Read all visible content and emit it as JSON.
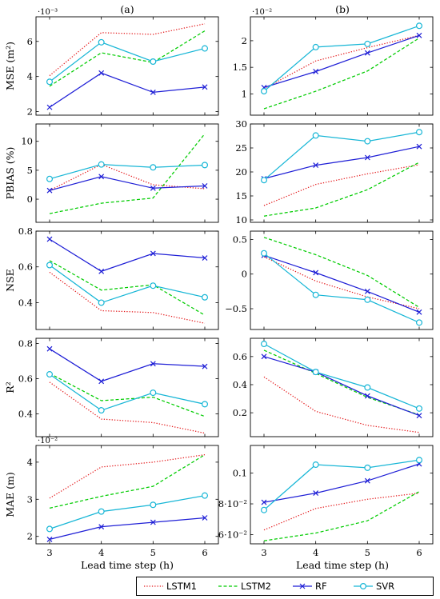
{
  "panel_labels": [
    "(a)",
    "(b)"
  ],
  "xlabel": "Lead time step (h)",
  "x_ticks": [
    3,
    4,
    5,
    6
  ],
  "legend": [
    {
      "name": "LSTM1",
      "color": "#e41a1c",
      "style": "dotted",
      "marker": "none"
    },
    {
      "name": "LSTM2",
      "color": "#00cc00",
      "style": "dashed",
      "marker": "none"
    },
    {
      "name": "RF",
      "color": "#1f1fd6",
      "style": "solid",
      "marker": "x"
    },
    {
      "name": "SVR",
      "color": "#17b6d6",
      "style": "solid",
      "marker": "o"
    }
  ],
  "chart_data": [
    {
      "type": "line",
      "panel": "a",
      "ylabel": "MSE (m²)",
      "exponent": "·10⁻³",
      "x": [
        3,
        4,
        5,
        6
      ],
      "ylim": [
        1.8,
        7.4
      ],
      "yticks": [
        2,
        4,
        6
      ],
      "ytick_labels": [
        "2",
        "4",
        "6"
      ],
      "series": [
        {
          "name": "LSTM1",
          "values": [
            4.05,
            6.5,
            6.4,
            7.0
          ]
        },
        {
          "name": "LSTM2",
          "values": [
            3.45,
            5.35,
            4.8,
            6.6
          ]
        },
        {
          "name": "RF",
          "values": [
            2.25,
            4.2,
            3.1,
            3.4
          ]
        },
        {
          "name": "SVR",
          "values": [
            3.7,
            5.95,
            4.85,
            5.6
          ]
        }
      ]
    },
    {
      "type": "line",
      "panel": "b",
      "ylabel": "",
      "exponent": "·10⁻²",
      "x": [
        3,
        4,
        5,
        6
      ],
      "ylim": [
        0.6,
        2.45
      ],
      "yticks": [
        1,
        1.5,
        2
      ],
      "ytick_labels": [
        "1",
        "1.5",
        "2"
      ],
      "series": [
        {
          "name": "LSTM1",
          "values": [
            1.1,
            1.62,
            1.87,
            2.1
          ]
        },
        {
          "name": "LSTM2",
          "values": [
            0.72,
            1.05,
            1.43,
            2.05
          ]
        },
        {
          "name": "RF",
          "values": [
            1.12,
            1.42,
            1.77,
            2.1
          ]
        },
        {
          "name": "SVR",
          "values": [
            1.05,
            1.88,
            1.94,
            2.28
          ]
        }
      ]
    },
    {
      "type": "line",
      "panel": "a",
      "ylabel": "PBIAS (%)",
      "exponent": "",
      "x": [
        3,
        4,
        5,
        6
      ],
      "ylim": [
        -4,
        13
      ],
      "yticks": [
        0,
        5,
        10
      ],
      "ytick_labels": [
        "0",
        "5",
        "10"
      ],
      "series": [
        {
          "name": "LSTM1",
          "values": [
            1.5,
            6.0,
            2.5,
            1.8
          ]
        },
        {
          "name": "LSTM2",
          "values": [
            -2.5,
            -0.7,
            0.2,
            11.3
          ]
        },
        {
          "name": "RF",
          "values": [
            1.5,
            3.9,
            1.9,
            2.3
          ]
        },
        {
          "name": "SVR",
          "values": [
            3.5,
            6.0,
            5.5,
            5.9
          ]
        }
      ]
    },
    {
      "type": "line",
      "panel": "b",
      "ylabel": "",
      "exponent": "",
      "x": [
        3,
        4,
        5,
        6
      ],
      "ylim": [
        9.5,
        30
      ],
      "yticks": [
        10,
        15,
        20,
        25,
        30
      ],
      "ytick_labels": [
        "10",
        "15",
        "20",
        "25",
        "30"
      ],
      "series": [
        {
          "name": "LSTM1",
          "values": [
            13.0,
            17.4,
            19.6,
            21.5
          ]
        },
        {
          "name": "LSTM2",
          "values": [
            10.8,
            12.5,
            16.3,
            22.0
          ]
        },
        {
          "name": "RF",
          "values": [
            18.6,
            21.4,
            23.0,
            25.3
          ]
        },
        {
          "name": "SVR",
          "values": [
            18.3,
            27.6,
            26.4,
            28.3
          ]
        }
      ]
    },
    {
      "type": "line",
      "panel": "a",
      "ylabel": "NSE",
      "exponent": "",
      "x": [
        3,
        4,
        5,
        6
      ],
      "ylim": [
        0.25,
        0.8
      ],
      "yticks": [
        0.4,
        0.6,
        0.8
      ],
      "ytick_labels": [
        "0.4",
        "0.6",
        "0.8"
      ],
      "series": [
        {
          "name": "LSTM1",
          "values": [
            0.57,
            0.355,
            0.345,
            0.285
          ]
        },
        {
          "name": "LSTM2",
          "values": [
            0.635,
            0.47,
            0.5,
            0.33
          ]
        },
        {
          "name": "RF",
          "values": [
            0.755,
            0.575,
            0.675,
            0.65
          ]
        },
        {
          "name": "SVR",
          "values": [
            0.61,
            0.4,
            0.495,
            0.43
          ]
        }
      ]
    },
    {
      "type": "line",
      "panel": "b",
      "ylabel": "",
      "exponent": "",
      "x": [
        3,
        4,
        5,
        6
      ],
      "ylim": [
        -0.8,
        0.62
      ],
      "yticks": [
        -0.5,
        0,
        0.5
      ],
      "ytick_labels": [
        "−0.5",
        "0",
        "0.5"
      ],
      "series": [
        {
          "name": "LSTM1",
          "values": [
            0.25,
            -0.1,
            -0.33,
            -0.5
          ]
        },
        {
          "name": "LSTM2",
          "values": [
            0.53,
            0.28,
            -0.02,
            -0.48
          ]
        },
        {
          "name": "RF",
          "values": [
            0.27,
            0.02,
            -0.25,
            -0.55
          ]
        },
        {
          "name": "SVR",
          "values": [
            0.3,
            -0.3,
            -0.37,
            -0.7
          ]
        }
      ]
    },
    {
      "type": "line",
      "panel": "a",
      "ylabel": "R²",
      "exponent": "",
      "x": [
        3,
        4,
        5,
        6
      ],
      "ylim": [
        0.27,
        0.83
      ],
      "yticks": [
        0.4,
        0.6,
        0.8
      ],
      "ytick_labels": [
        "0.4",
        "0.6",
        "0.8"
      ],
      "series": [
        {
          "name": "LSTM1",
          "values": [
            0.58,
            0.37,
            0.35,
            0.29
          ]
        },
        {
          "name": "LSTM2",
          "values": [
            0.63,
            0.475,
            0.495,
            0.385
          ]
        },
        {
          "name": "RF",
          "values": [
            0.77,
            0.585,
            0.685,
            0.67
          ]
        },
        {
          "name": "SVR",
          "values": [
            0.625,
            0.42,
            0.52,
            0.455
          ]
        }
      ]
    },
    {
      "type": "line",
      "panel": "b",
      "ylabel": "",
      "exponent": "",
      "x": [
        3,
        4,
        5,
        6
      ],
      "ylim": [
        0.03,
        0.73
      ],
      "yticks": [
        0.2,
        0.4,
        0.6
      ],
      "ytick_labels": [
        "0.2",
        "0.4",
        "0.6"
      ],
      "series": [
        {
          "name": "LSTM1",
          "values": [
            0.455,
            0.21,
            0.11,
            0.06
          ]
        },
        {
          "name": "LSTM2",
          "values": [
            0.645,
            0.48,
            0.31,
            0.185
          ]
        },
        {
          "name": "RF",
          "values": [
            0.6,
            0.49,
            0.32,
            0.18
          ]
        },
        {
          "name": "SVR",
          "values": [
            0.69,
            0.49,
            0.38,
            0.23
          ]
        }
      ]
    },
    {
      "type": "line",
      "panel": "a",
      "ylabel": "MAE (m)",
      "exponent": "·10⁻²",
      "x": [
        3,
        4,
        5,
        6
      ],
      "ylim": [
        1.8,
        4.45
      ],
      "yticks": [
        2,
        3,
        4
      ],
      "ytick_labels": [
        "2",
        "3",
        "4"
      ],
      "series": [
        {
          "name": "LSTM1",
          "values": [
            3.03,
            3.87,
            4.0,
            4.2
          ]
        },
        {
          "name": "LSTM2",
          "values": [
            2.76,
            3.08,
            3.35,
            4.2
          ]
        },
        {
          "name": "RF",
          "values": [
            1.92,
            2.26,
            2.38,
            2.5
          ]
        },
        {
          "name": "SVR",
          "values": [
            2.2,
            2.67,
            2.85,
            3.1
          ]
        }
      ]
    },
    {
      "type": "line",
      "panel": "b",
      "ylabel": "",
      "exponent": "",
      "x": [
        3,
        4,
        5,
        6
      ],
      "ylim": [
        0.054,
        0.118
      ],
      "yticks": [
        0.06,
        0.08,
        0.1
      ],
      "ytick_labels": [
        "6·10⁻²",
        "8·10⁻²",
        "0.1"
      ],
      "series": [
        {
          "name": "LSTM1",
          "values": [
            0.063,
            0.077,
            0.083,
            0.087
          ]
        },
        {
          "name": "LSTM2",
          "values": [
            0.056,
            0.061,
            0.069,
            0.088
          ]
        },
        {
          "name": "RF",
          "values": [
            0.081,
            0.087,
            0.095,
            0.106
          ]
        },
        {
          "name": "SVR",
          "values": [
            0.076,
            0.1055,
            0.1035,
            0.1085
          ]
        }
      ]
    }
  ]
}
